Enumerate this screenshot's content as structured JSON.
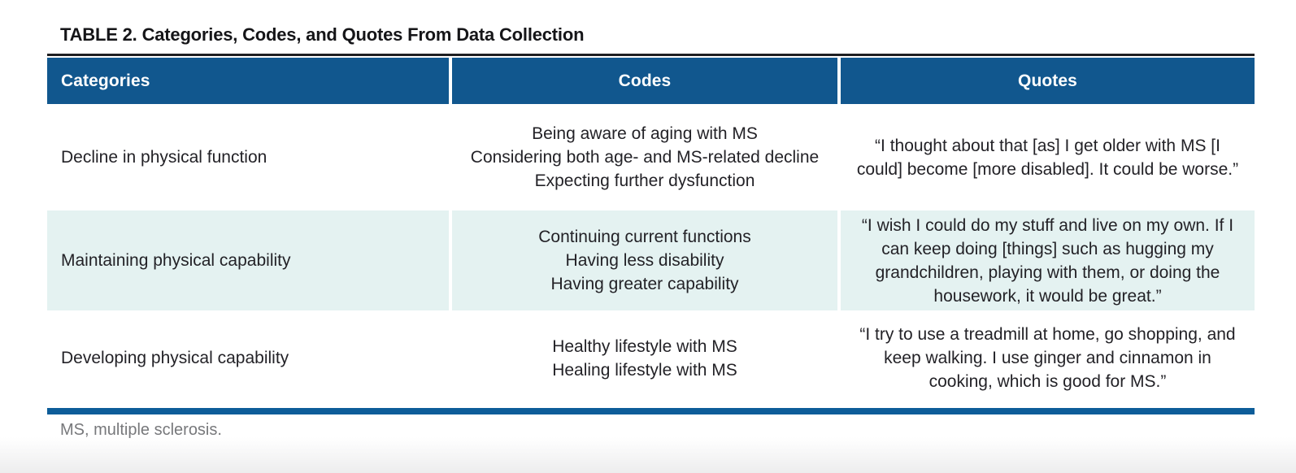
{
  "title": {
    "label": "TABLE 2.",
    "text": "Categories, Codes, and Quotes From Data Collection"
  },
  "table": {
    "columns": [
      {
        "label": "Categories",
        "align": "left"
      },
      {
        "label": "Codes",
        "align": "center"
      },
      {
        "label": "Quotes",
        "align": "center"
      }
    ],
    "rows": [
      {
        "category": "Decline in physical function",
        "codes": [
          "Being aware of aging with MS",
          "Considering both age- and MS-related decline",
          "Expecting further dysfunction"
        ],
        "quote": "“I thought about that [as] I get older with MS [I could] become [more disabled]. It could be worse.”"
      },
      {
        "category": "Maintaining physical capability",
        "codes": [
          "Continuing current functions",
          "Having less disability",
          "Having greater capability"
        ],
        "quote": "“I wish I could do my stuff and live on my own. If I can keep doing [things] such as hugging my grandchildren, playing with them, or doing the housework, it would be great.”"
      },
      {
        "category": "Developing physical capability",
        "codes": [
          "Healthy lifestyle with MS",
          "Healing lifestyle with MS"
        ],
        "quote": "“I try to use a treadmill at home, go shopping, and keep walking. I use ginger and cinnamon in cooking, which is good for MS.”"
      }
    ],
    "footnote": "MS, multiple sclerosis."
  },
  "colors": {
    "header_bg": "#11578E",
    "alt_row_bg": "#E4F2F1",
    "bottom_bar": "#0D5D99",
    "top_rule": "#1E1E21",
    "body_text": "#232227",
    "footnote_text": "#77787B"
  }
}
